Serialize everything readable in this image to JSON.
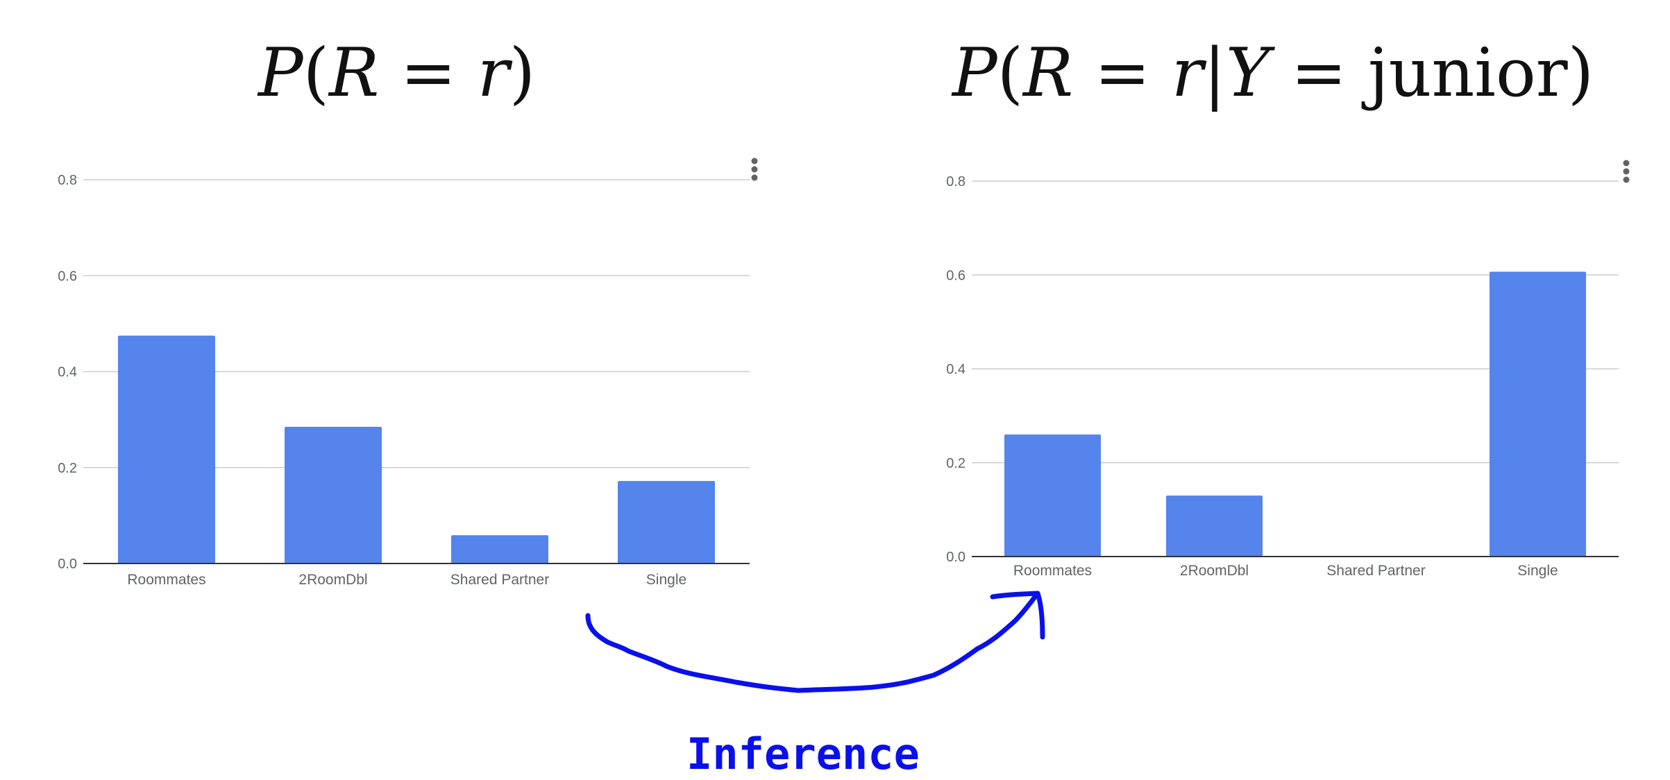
{
  "chart_data": [
    {
      "type": "bar",
      "title": "P(R = r)",
      "categories": [
        "Roommates",
        "2RoomDbl",
        "Shared Partner",
        "Single"
      ],
      "values": [
        0.475,
        0.285,
        0.059,
        0.172
      ],
      "yticks": [
        "0.0",
        "0.2",
        "0.4",
        "0.6",
        "0.8"
      ],
      "ylim": [
        0,
        0.8
      ],
      "grid": true,
      "bar_color": "#5484ec"
    },
    {
      "type": "bar",
      "title": "P(R = r|Y = junior)",
      "categories": [
        "Roommates",
        "2RoomDbl",
        "Shared Partner",
        "Single"
      ],
      "values": [
        0.26,
        0.13,
        0.0,
        0.607
      ],
      "yticks": [
        "0.0",
        "0.2",
        "0.4",
        "0.6",
        "0.8"
      ],
      "ylim": [
        0,
        0.8
      ],
      "grid": true,
      "bar_color": "#5484ec"
    }
  ],
  "annotation": {
    "label": "Inference",
    "color": "#0a10ec"
  },
  "icons": {
    "chart_menu": "more-vert-icon"
  }
}
